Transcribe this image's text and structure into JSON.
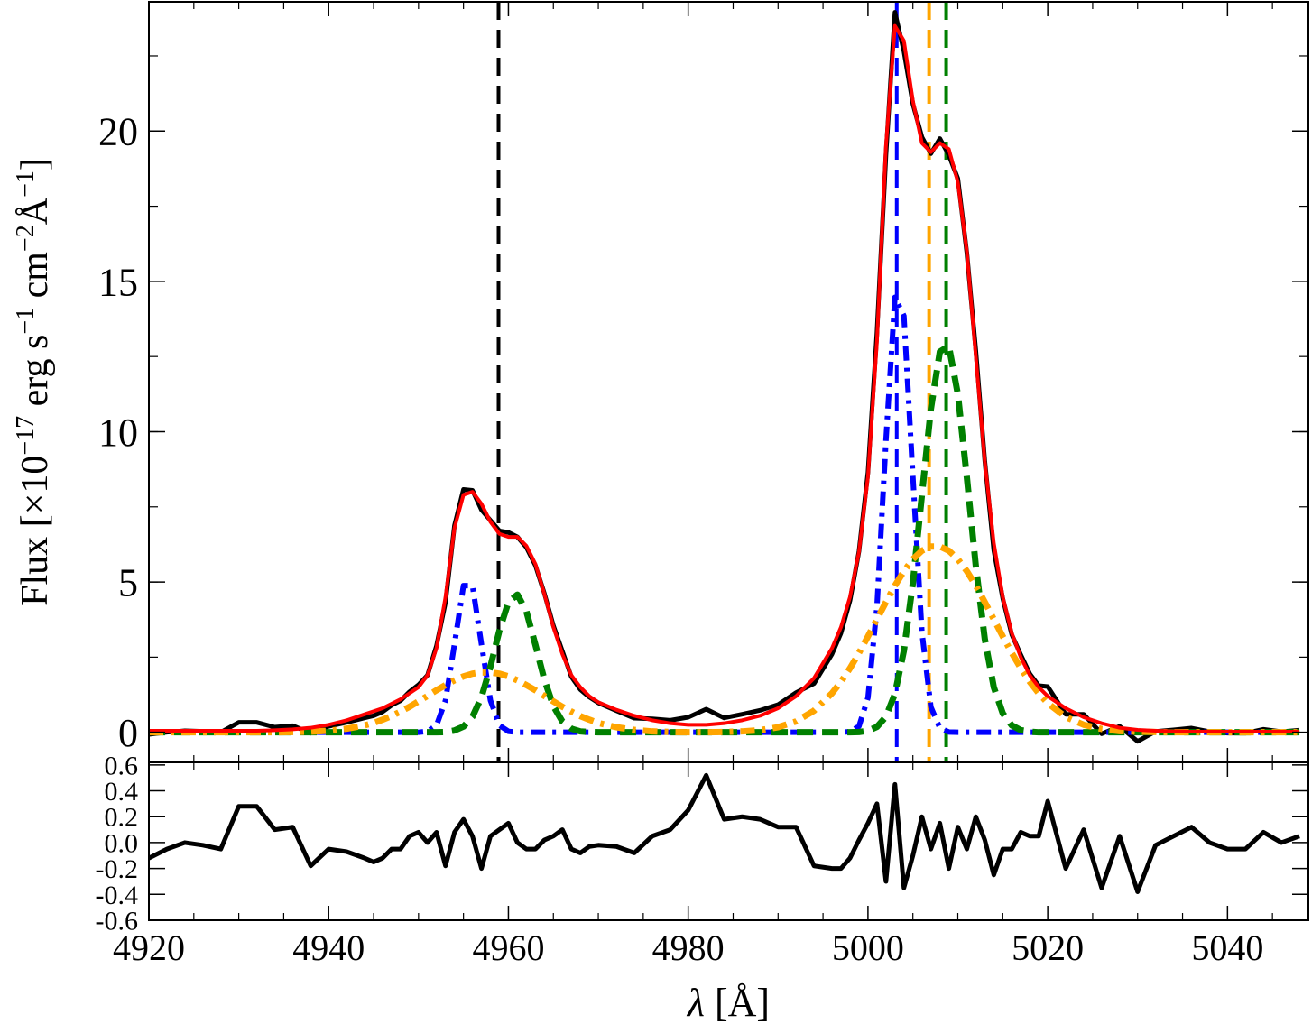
{
  "chart_data": [
    {
      "type": "line",
      "ylabel": [
        "Flux [×10",
        "−17",
        " erg s",
        "−1",
        " cm",
        "−2",
        "Å",
        "−1",
        "]"
      ],
      "xlim": [
        4920,
        5049
      ],
      "xticks": [
        4920,
        4940,
        4960,
        4980,
        5000,
        5020,
        5040
      ],
      "ylim": [
        -1,
        24.3
      ],
      "yticks": [
        0,
        5,
        10,
        15,
        20
      ],
      "x": [
        4920,
        4922,
        4924,
        4926,
        4928,
        4930,
        4932,
        4934,
        4936,
        4938,
        4940,
        4942,
        4944,
        4945,
        4946,
        4947,
        4948,
        4949,
        4950,
        4951,
        4952,
        4953,
        4954,
        4955,
        4956,
        4957,
        4958,
        4959,
        4960,
        4961,
        4962,
        4963,
        4964,
        4965,
        4966,
        4967,
        4968,
        4969,
        4970,
        4972,
        4974,
        4976,
        4978,
        4980,
        4982,
        4984,
        4986,
        4988,
        4990,
        4992,
        4994,
        4996,
        4997,
        4998,
        4999,
        5000,
        5001,
        5002,
        5003,
        5004,
        5005,
        5006,
        5007,
        5008,
        5009,
        5010,
        5011,
        5012,
        5013,
        5014,
        5015,
        5016,
        5017,
        5018,
        5019,
        5020,
        5022,
        5024,
        5026,
        5028,
        5030,
        5032,
        5034,
        5036,
        5038,
        5040,
        5042,
        5044,
        5046,
        5048
      ],
      "series": [
        {
          "color": "#000000",
          "style": "solid",
          "width": 5,
          "values": [
            -0.07,
            0.0,
            0.05,
            0.03,
            0.0,
            0.33,
            0.33,
            0.17,
            0.22,
            -0.03,
            0.2,
            0.33,
            0.48,
            0.55,
            0.68,
            0.9,
            1.05,
            1.35,
            1.58,
            1.9,
            2.88,
            4.32,
            6.88,
            8.08,
            8.05,
            7.4,
            7.05,
            6.7,
            6.65,
            6.5,
            6.15,
            5.55,
            4.62,
            3.55,
            2.7,
            1.85,
            1.42,
            1.17,
            0.98,
            0.72,
            0.47,
            0.45,
            0.4,
            0.5,
            0.77,
            0.48,
            0.6,
            0.73,
            0.92,
            1.32,
            1.62,
            2.6,
            3.3,
            4.38,
            6.02,
            8.65,
            13.3,
            19.2,
            23.95,
            22.65,
            20.9,
            19.8,
            19.25,
            19.75,
            19.2,
            18.42,
            15.95,
            12.7,
            9.02,
            6.05,
            4.45,
            3.25,
            2.58,
            1.95,
            1.55,
            1.52,
            0.6,
            0.6,
            -0.05,
            0.2,
            -0.3,
            0.03,
            0.08,
            0.14,
            0.02,
            -0.03,
            -0.03,
            0.1,
            0.02,
            0.07
          ]
        },
        {
          "color": "#0000ff",
          "style": "dashdot",
          "width": 6,
          "values": [
            0,
            0,
            0,
            0,
            0,
            0,
            0,
            0,
            0,
            0,
            0,
            0,
            0,
            0,
            0,
            0,
            0,
            0,
            0,
            0.03,
            0.23,
            1.06,
            2.93,
            4.88,
            4.88,
            2.93,
            1.06,
            0.23,
            0.03,
            0,
            0,
            0,
            0,
            0,
            0,
            0,
            0,
            0,
            0,
            0,
            0,
            0,
            0,
            0,
            0,
            0,
            0,
            0,
            0,
            0,
            0,
            0,
            0,
            0.02,
            0.2,
            1.15,
            4.17,
            9.7,
            14.47,
            13.85,
            8.49,
            3.34,
            0.84,
            0.14,
            0.01,
            0,
            0,
            0,
            0,
            0,
            0,
            0,
            0,
            0,
            0,
            0,
            0,
            0,
            0,
            0,
            0,
            0,
            0,
            0,
            0,
            0,
            0,
            0,
            0,
            0
          ]
        },
        {
          "color": "#008000",
          "style": "dashed",
          "width": 7,
          "values": [
            0,
            0,
            0,
            0,
            0,
            0,
            0,
            0,
            0,
            0,
            0,
            0,
            0,
            0,
            0,
            0,
            0,
            0,
            0,
            0,
            0,
            0.01,
            0.06,
            0.19,
            0.52,
            1.17,
            2.19,
            3.39,
            4.33,
            4.58,
            4.02,
            2.91,
            1.75,
            0.87,
            0.36,
            0.12,
            0.03,
            0.01,
            0,
            0,
            0,
            0,
            0,
            0,
            0,
            0,
            0,
            0,
            0,
            0,
            0,
            0,
            0,
            0,
            0.01,
            0.05,
            0.18,
            0.52,
            1.28,
            2.72,
            4.98,
            7.89,
            10.76,
            12.66,
            12.85,
            11.25,
            8.49,
            5.53,
            3.1,
            1.5,
            0.63,
            0.23,
            0.07,
            0.02,
            0,
            0,
            0,
            0,
            0,
            0,
            0,
            0,
            0,
            0,
            0,
            0,
            0,
            0,
            0,
            0
          ]
        },
        {
          "color": "#ffa500",
          "style": "dashdot",
          "width": 7,
          "values": [
            0,
            0,
            0,
            0,
            0,
            0,
            0,
            0,
            0.01,
            0.02,
            0.05,
            0.12,
            0.23,
            0.31,
            0.42,
            0.54,
            0.69,
            0.85,
            1.03,
            1.21,
            1.4,
            1.57,
            1.73,
            1.86,
            1.95,
            1.99,
            1.99,
            1.95,
            1.86,
            1.73,
            1.57,
            1.4,
            1.21,
            1.03,
            0.85,
            0.69,
            0.54,
            0.42,
            0.31,
            0.17,
            0.08,
            0.03,
            0.01,
            0,
            0,
            0.01,
            0.03,
            0.07,
            0.17,
            0.36,
            0.72,
            1.3,
            1.68,
            2.13,
            2.64,
            3.19,
            3.76,
            4.33,
            4.88,
            5.36,
            5.76,
            6.04,
            6.18,
            6.18,
            6.04,
            5.76,
            5.36,
            4.88,
            4.33,
            3.76,
            3.19,
            2.64,
            2.13,
            1.68,
            1.3,
            0.97,
            0.51,
            0.25,
            0.11,
            0.04,
            0.02,
            0.01,
            0,
            0,
            0,
            0,
            0,
            0,
            0,
            0
          ]
        },
        {
          "color": "#ff0000",
          "style": "solid",
          "width": 4,
          "values": [
            0.05,
            0.05,
            0.05,
            0.05,
            0.05,
            0.05,
            0.05,
            0.07,
            0.1,
            0.15,
            0.25,
            0.4,
            0.6,
            0.7,
            0.8,
            0.95,
            1.1,
            1.3,
            1.5,
            1.9,
            2.8,
            4.5,
            6.8,
            7.9,
            8.0,
            7.6,
            7.0,
            6.6,
            6.5,
            6.5,
            6.2,
            5.6,
            4.6,
            3.5,
            2.6,
            1.9,
            1.5,
            1.2,
            1.0,
            0.75,
            0.55,
            0.4,
            0.3,
            0.25,
            0.25,
            0.3,
            0.4,
            0.55,
            0.8,
            1.2,
            1.8,
            2.8,
            3.5,
            4.5,
            6.0,
            8.5,
            13.0,
            19.5,
            23.5,
            23.0,
            21.0,
            19.6,
            19.3,
            19.6,
            19.4,
            18.3,
            16.0,
            12.5,
            9.0,
            6.3,
            4.5,
            3.3,
            2.5,
            1.9,
            1.5,
            1.2,
            0.8,
            0.5,
            0.3,
            0.15,
            0.08,
            0.05,
            0.03,
            0.02,
            0.02,
            0.02,
            0.02,
            0.02,
            0.02,
            0.02
          ]
        }
      ],
      "vlines": [
        {
          "x": 4958.9,
          "color": "#000000"
        },
        {
          "x": 5003.2,
          "color": "#0000ff"
        },
        {
          "x": 5006.8,
          "color": "#ffa500"
        },
        {
          "x": 5008.7,
          "color": "#008000"
        }
      ]
    },
    {
      "type": "line",
      "xlabel": [
        "λ",
        " [Å]"
      ],
      "xlim": [
        4920,
        5049
      ],
      "xticks": [
        4920,
        4940,
        4960,
        4980,
        5000,
        5020,
        5040
      ],
      "ylim": [
        -0.6,
        0.62
      ],
      "yticks": [
        0.6,
        0.4,
        0.2,
        {
          "value": 0,
          "label": "0.0"
        },
        -0.2,
        -0.4,
        -0.6
      ],
      "x": [
        4920,
        4922,
        4924,
        4926,
        4928,
        4930,
        4932,
        4934,
        4936,
        4938,
        4940,
        4942,
        4944,
        4945,
        4946,
        4947,
        4948,
        4949,
        4950,
        4951,
        4952,
        4953,
        4954,
        4955,
        4956,
        4957,
        4958,
        4959,
        4960,
        4961,
        4962,
        4963,
        4964,
        4965,
        4966,
        4967,
        4968,
        4969,
        4970,
        4972,
        4974,
        4976,
        4978,
        4980,
        4982,
        4984,
        4986,
        4988,
        4990,
        4992,
        4994,
        4996,
        4997,
        4998,
        4999,
        5000,
        5001,
        5002,
        5003,
        5004,
        5005,
        5006,
        5007,
        5008,
        5009,
        5010,
        5011,
        5012,
        5013,
        5014,
        5015,
        5016,
        5017,
        5018,
        5019,
        5020,
        5022,
        5024,
        5026,
        5028,
        5030,
        5032,
        5034,
        5036,
        5038,
        5040,
        5042,
        5044,
        5046,
        5048
      ],
      "series": [
        {
          "color": "#000000",
          "style": "solid",
          "width": 5,
          "values": [
            -0.12,
            -0.05,
            0.0,
            -0.02,
            -0.05,
            0.28,
            0.28,
            0.1,
            0.12,
            -0.18,
            -0.05,
            -0.07,
            -0.12,
            -0.15,
            -0.12,
            -0.05,
            -0.05,
            0.05,
            0.08,
            0.0,
            0.08,
            -0.18,
            0.08,
            0.18,
            0.05,
            -0.2,
            0.05,
            0.1,
            0.15,
            0.0,
            -0.05,
            -0.05,
            0.02,
            0.05,
            0.1,
            -0.05,
            -0.08,
            -0.03,
            -0.02,
            -0.03,
            -0.08,
            0.05,
            0.1,
            0.25,
            0.52,
            0.18,
            0.2,
            0.18,
            0.12,
            0.12,
            -0.18,
            -0.2,
            -0.2,
            -0.12,
            0.02,
            0.15,
            0.3,
            -0.3,
            0.45,
            -0.35,
            -0.1,
            0.2,
            -0.05,
            0.15,
            -0.2,
            0.12,
            -0.05,
            0.2,
            0.02,
            -0.25,
            -0.05,
            -0.05,
            0.08,
            0.05,
            0.05,
            0.32,
            -0.2,
            0.1,
            -0.35,
            0.05,
            -0.38,
            -0.02,
            0.05,
            0.12,
            0.0,
            -0.05,
            -0.05,
            0.08,
            0.0,
            0.05
          ]
        }
      ]
    }
  ]
}
